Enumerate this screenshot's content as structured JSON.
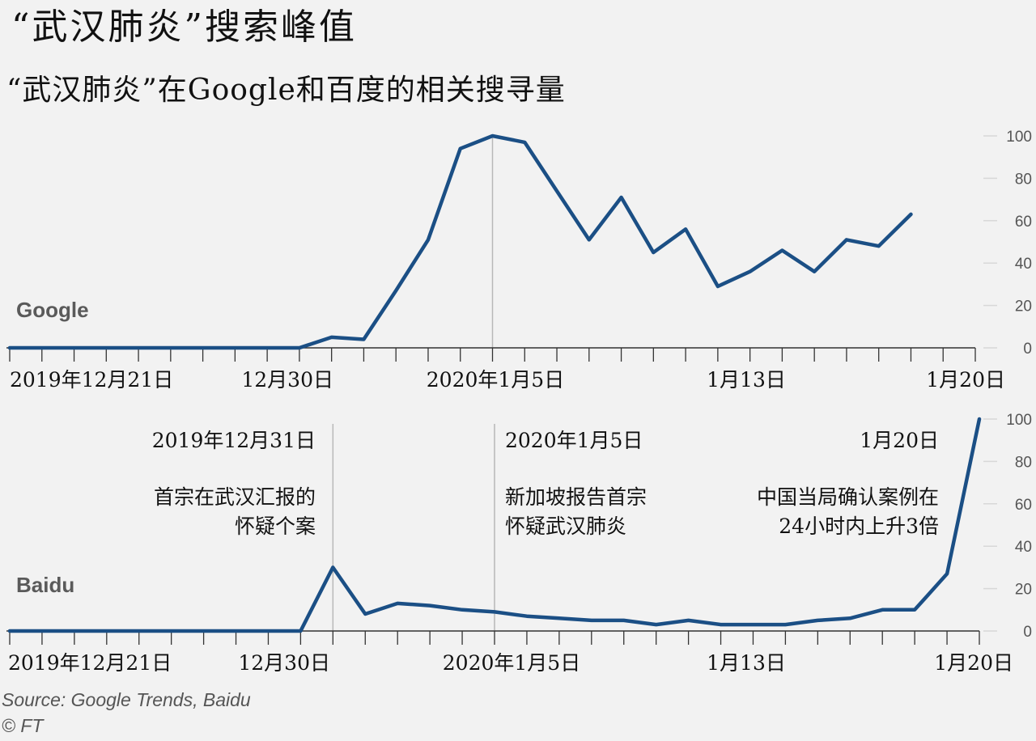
{
  "title": "“武汉肺炎”搜索峰值",
  "subtitle": "“武汉肺炎”在Google和百度的相关搜寻量",
  "source": "Source: Google Trends, Baidu",
  "copyright": "© FT",
  "colors": {
    "line": "#1b4f85",
    "grid": "#d8d8d8",
    "axis": "#333333",
    "tick_label": "#555555",
    "ref": "#b8b8b8",
    "panel_label": "#5a5a5a"
  },
  "chart_data": [
    {
      "type": "line",
      "panel_label": "Google",
      "ylim": [
        0,
        100
      ],
      "yticks": [
        "0",
        "20",
        "40",
        "60",
        "80",
        "100"
      ],
      "x_range": [
        0,
        30
      ],
      "x_tick_labels": [
        {
          "x": 0,
          "label": "2019年12月21日"
        },
        {
          "x": 10,
          "label": "12月30日"
        },
        {
          "x": 15,
          "label": "2020年1月5日"
        },
        {
          "x": 23,
          "label": "1月13日"
        },
        {
          "x": 30,
          "label": "1月20日"
        }
      ],
      "reference_lines": [
        15
      ],
      "series": [
        {
          "x": [
            0,
            1,
            2,
            3,
            4,
            5,
            6,
            7,
            8,
            9,
            10,
            11,
            12,
            13,
            14,
            15,
            16,
            17,
            18,
            19,
            20,
            21,
            22,
            23,
            24,
            25,
            26,
            27,
            28
          ],
          "values": [
            0,
            0,
            0,
            0,
            0,
            0,
            0,
            0,
            0,
            0,
            5,
            4,
            27,
            51,
            94,
            100,
            97,
            74,
            51,
            71,
            45,
            56,
            29,
            36,
            46,
            36,
            51,
            48,
            63
          ]
        }
      ]
    },
    {
      "type": "line",
      "panel_label": "Baidu",
      "ylim": [
        0,
        100
      ],
      "yticks": [
        "0",
        "20",
        "40",
        "60",
        "80",
        "100"
      ],
      "x_range": [
        0,
        30
      ],
      "x_tick_labels": [
        {
          "x": 0,
          "label": "2019年12月21日"
        },
        {
          "x": 10,
          "label": "12月30日"
        },
        {
          "x": 15,
          "label": "2020年1月5日"
        },
        {
          "x": 23,
          "label": "1月13日"
        },
        {
          "x": 30,
          "label": "1月20日"
        }
      ],
      "reference_lines": [
        10,
        15
      ],
      "annotations": [
        {
          "date": "2019年12月31日",
          "lines": [
            "首宗在武汉汇报的",
            "怀疑个案"
          ]
        },
        {
          "date": "2020年1月5日",
          "lines": [
            "新加坡报告首宗",
            "怀疑武汉肺炎"
          ]
        },
        {
          "date": "1月20日",
          "lines": [
            "中国当局确认案例在",
            "24小时内上升3倍"
          ]
        }
      ],
      "series": [
        {
          "x": [
            0,
            1,
            2,
            3,
            4,
            5,
            6,
            7,
            8,
            9,
            10,
            11,
            12,
            13,
            14,
            15,
            16,
            17,
            18,
            19,
            20,
            21,
            22,
            23,
            24,
            25,
            26,
            27,
            28,
            29,
            30
          ],
          "values": [
            0,
            0,
            0,
            0,
            0,
            0,
            0,
            0,
            0,
            0,
            30,
            8,
            13,
            12,
            10,
            9,
            7,
            6,
            5,
            5,
            3,
            5,
            3,
            3,
            3,
            5,
            6,
            10,
            10,
            27,
            100
          ]
        }
      ]
    }
  ]
}
